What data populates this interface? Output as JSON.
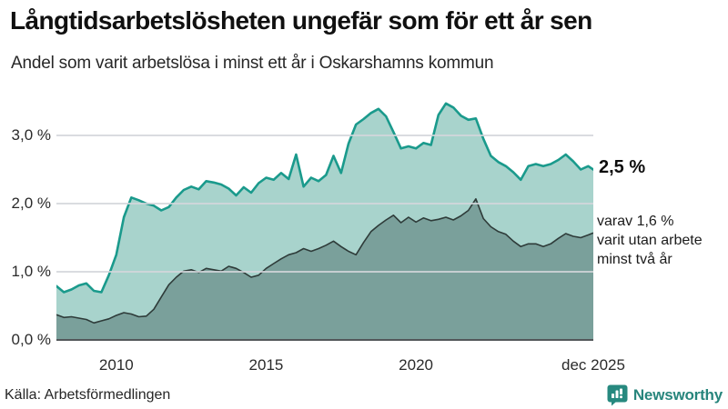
{
  "header": {
    "title": "Långtidsarbetslösheten ungefär som för ett år sen",
    "subtitle": "Andel som varit arbetslösa i minst ett år i Oskarshamns kommun"
  },
  "annotations": {
    "total_end_label": "2,5 %",
    "twoyear_lines": [
      "varav 1,6 %",
      "varit utan arbete",
      "minst två år"
    ]
  },
  "footer": {
    "source": "Källa: Arbetsförmedlingen",
    "brand": "Newsworthy"
  },
  "colors": {
    "total_line": "#1a9a8c",
    "total_fill": "#a8d3cc",
    "twoyear_line": "#2e3b39",
    "twoyear_fill": "#7aa09b",
    "gridline": "#d3d6db",
    "axis_line": "#53575a",
    "brand_teal": "#27857c"
  },
  "chart_data": {
    "type": "area",
    "title": "Långtidsarbetslösheten ungefär som för ett år sen",
    "subtitle": "Andel som varit arbetslösa i minst ett år i Oskarshamns kommun",
    "y_unit": "%",
    "xlim": [
      2008,
      2025.92
    ],
    "ylim": [
      0,
      3.6
    ],
    "grid": "horizontal",
    "y_ticks": [
      {
        "label": "0,0 %",
        "value": 0
      },
      {
        "label": "1,0 %",
        "value": 1
      },
      {
        "label": "2,0 %",
        "value": 2
      },
      {
        "label": "3,0 %",
        "value": 3
      }
    ],
    "x_ticks": [
      {
        "label": "2010",
        "year": 2010
      },
      {
        "label": "2015",
        "year": 2015
      },
      {
        "label": "2020",
        "year": 2020
      },
      {
        "label": "dec 2025",
        "year": 2025.92
      }
    ],
    "x": [
      2008.0,
      2008.25,
      2008.5,
      2008.75,
      2009.0,
      2009.25,
      2009.5,
      2009.75,
      2010.0,
      2010.25,
      2010.5,
      2010.75,
      2011.0,
      2011.25,
      2011.5,
      2011.75,
      2012.0,
      2012.25,
      2012.5,
      2012.75,
      2013.0,
      2013.25,
      2013.5,
      2013.75,
      2014.0,
      2014.25,
      2014.5,
      2014.75,
      2015.0,
      2015.25,
      2015.5,
      2015.75,
      2016.0,
      2016.25,
      2016.5,
      2016.75,
      2017.0,
      2017.25,
      2017.5,
      2017.75,
      2018.0,
      2018.25,
      2018.5,
      2018.75,
      2019.0,
      2019.25,
      2019.5,
      2019.75,
      2020.0,
      2020.25,
      2020.5,
      2020.75,
      2021.0,
      2021.25,
      2021.5,
      2021.75,
      2022.0,
      2022.25,
      2022.5,
      2022.75,
      2023.0,
      2023.25,
      2023.5,
      2023.75,
      2024.0,
      2024.25,
      2024.5,
      2024.75,
      2025.0,
      2025.25,
      2025.5,
      2025.75,
      2025.92
    ],
    "series": [
      {
        "name": "Andel arbetslösa minst ett år",
        "end_value": "2,5 %",
        "line_color": "#1a9a8c",
        "fill_color": "#a8d3cc",
        "values": [
          0.79,
          0.7,
          0.74,
          0.8,
          0.83,
          0.72,
          0.7,
          0.95,
          1.25,
          1.8,
          2.09,
          2.05,
          2.0,
          1.97,
          1.9,
          1.95,
          2.09,
          2.2,
          2.25,
          2.21,
          2.33,
          2.31,
          2.28,
          2.22,
          2.12,
          2.24,
          2.16,
          2.3,
          2.38,
          2.35,
          2.45,
          2.36,
          2.72,
          2.25,
          2.38,
          2.33,
          2.42,
          2.7,
          2.45,
          2.88,
          3.16,
          3.24,
          3.33,
          3.39,
          3.28,
          3.05,
          2.81,
          2.84,
          2.81,
          2.89,
          2.86,
          3.3,
          3.47,
          3.41,
          3.29,
          3.23,
          3.25,
          2.95,
          2.7,
          2.61,
          2.55,
          2.46,
          2.35,
          2.55,
          2.58,
          2.55,
          2.58,
          2.64,
          2.72,
          2.62,
          2.5,
          2.55,
          2.5
        ]
      },
      {
        "name": "varav utan arbete minst två år",
        "end_value": "1,6 %",
        "line_color": "#2e3b39",
        "fill_color": "#7aa09b",
        "values": [
          0.37,
          0.33,
          0.34,
          0.32,
          0.3,
          0.25,
          0.28,
          0.31,
          0.36,
          0.4,
          0.38,
          0.34,
          0.35,
          0.45,
          0.63,
          0.81,
          0.92,
          1.01,
          1.03,
          0.99,
          1.05,
          1.03,
          1.01,
          1.08,
          1.05,
          0.99,
          0.92,
          0.95,
          1.05,
          1.12,
          1.19,
          1.25,
          1.28,
          1.34,
          1.3,
          1.34,
          1.39,
          1.45,
          1.37,
          1.3,
          1.25,
          1.43,
          1.59,
          1.68,
          1.76,
          1.83,
          1.72,
          1.8,
          1.73,
          1.79,
          1.75,
          1.77,
          1.8,
          1.76,
          1.82,
          1.9,
          2.07,
          1.78,
          1.66,
          1.59,
          1.55,
          1.45,
          1.37,
          1.41,
          1.41,
          1.37,
          1.41,
          1.49,
          1.56,
          1.52,
          1.5,
          1.54,
          1.57
        ]
      }
    ]
  }
}
